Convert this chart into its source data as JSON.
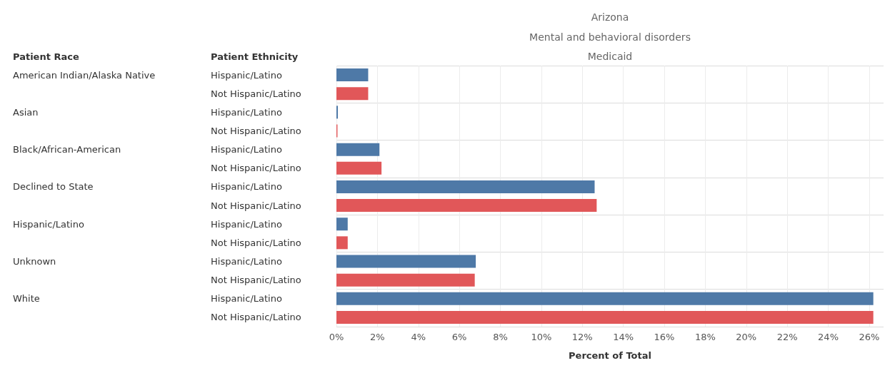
{
  "chart_data": {
    "type": "bar",
    "orientation": "horizontal",
    "title": "Arizona",
    "subtitle": "Mental and behavioral disorders",
    "annotations": [
      "Medicaid",
      "Patient Race",
      "American Indian/Alaska Native",
      "Asian",
      "Black/African-American",
      "Declined to State",
      "Hispanic/Latino",
      "Unknown",
      "White"
    ],
    "ylabel": "Patient Ethnicity",
    "xlabel": "Percent of Total",
    "categories": [
      "Hispanic/Latino",
      "Not Hispanic/Latino",
      "Hispanic/Latino",
      "Not Hispanic/Latino",
      "Hispanic/Latino",
      "Not Hispanic/Latino",
      "Hispanic/Latino",
      "Not Hispanic/Latino",
      "Hispanic/Latino",
      "Not Hispanic/Latino",
      "Hispanic/Latino",
      "Not Hispanic/Latino",
      "Hispanic/Latino",
      "Not Hispanic/Latino"
    ],
    "values": [
      1.55,
      1.55,
      0.07,
      0.05,
      2.1,
      2.2,
      12.6,
      12.7,
      0.55,
      0.55,
      6.8,
      6.75,
      26.2,
      26.2
    ],
    "colors": [
      "#4e79a7",
      "#e15759",
      "#4e79a7",
      "#e15759",
      "#4e79a7",
      "#e15759",
      "#4e79a7",
      "#e15759",
      "#4e79a7",
      "#e15759",
      "#4e79a7",
      "#e15759",
      "#4e79a7",
      "#e15759"
    ],
    "xlim": [
      0,
      26.7
    ],
    "xticks": [
      {
        "value": 0,
        "label": "0%"
      },
      {
        "value": 2,
        "label": "2%"
      },
      {
        "value": 4,
        "label": "4%"
      },
      {
        "value": 6,
        "label": "6%"
      },
      {
        "value": 8,
        "label": "8%"
      },
      {
        "value": 10,
        "label": "10%"
      },
      {
        "value": 12,
        "label": "12%"
      },
      {
        "value": 14,
        "label": "14%"
      },
      {
        "value": 16,
        "label": "16%"
      },
      {
        "value": 18,
        "label": "18%"
      },
      {
        "value": 20,
        "label": "20%"
      },
      {
        "value": 22,
        "label": "22%"
      },
      {
        "value": 24,
        "label": "24%"
      },
      {
        "value": 26,
        "label": "26%"
      }
    ],
    "grid": "x"
  }
}
